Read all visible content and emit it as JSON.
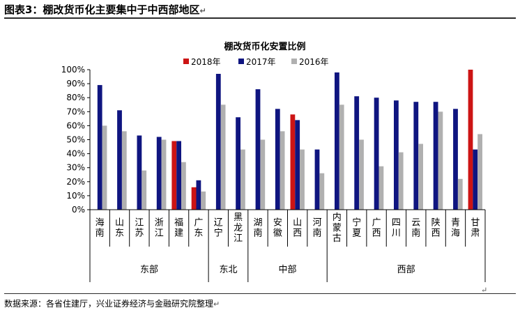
{
  "figure_title": "图表3：棚改货币化主要集中于中西部地区",
  "source_note": "数据来源：各省住建厅，兴业证券经济与金融研究院整理",
  "return_mark": "↵",
  "colors": {
    "2018年": "#cc1414",
    "2017年": "#0f1580",
    "2016年": "#b0b0b0"
  },
  "chart_data": {
    "type": "bar",
    "title": "棚改货币化安置比例",
    "legend_position": "top",
    "y_ticks": [
      "0%",
      "10%",
      "20%",
      "30%",
      "40%",
      "50%",
      "60%",
      "70%",
      "80%",
      "90%",
      "100%"
    ],
    "ylim": [
      0,
      100
    ],
    "grid": false,
    "categories": [
      "海南",
      "山东",
      "江苏",
      "浙江",
      "福建",
      "广东",
      "辽宁",
      "黑龙江",
      "湖南",
      "安徽",
      "山西",
      "河南",
      "内蒙古",
      "宁夏",
      "广西",
      "四川",
      "云南",
      "陕西",
      "青海",
      "甘肃"
    ],
    "groups": [
      {
        "name": "东部",
        "count": 6
      },
      {
        "name": "东北",
        "count": 2
      },
      {
        "name": "中部",
        "count": 4
      },
      {
        "name": "西部",
        "count": 8
      }
    ],
    "series": [
      {
        "name": "2018年",
        "values": [
          null,
          null,
          null,
          null,
          49,
          16,
          null,
          null,
          null,
          null,
          68,
          null,
          null,
          null,
          null,
          null,
          null,
          null,
          null,
          100
        ]
      },
      {
        "name": "2017年",
        "values": [
          89,
          71,
          53,
          52,
          49,
          21,
          97,
          66,
          86,
          72,
          64,
          43,
          98,
          81,
          80,
          78,
          77,
          77,
          72,
          43
        ]
      },
      {
        "name": "2016年",
        "values": [
          60,
          56,
          28,
          50,
          34,
          13,
          75,
          43,
          50,
          56,
          43,
          26,
          75,
          50,
          31,
          41,
          47,
          70,
          22,
          54
        ]
      }
    ]
  }
}
